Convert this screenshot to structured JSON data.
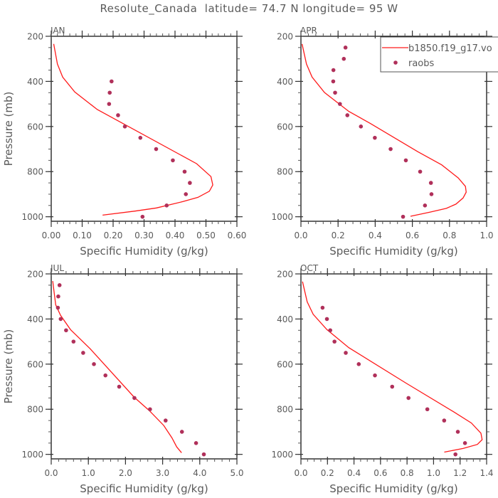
{
  "title": "Resolute_Canada  latitude= 74.7 N longitude= 95 W",
  "colors": {
    "model": "#ff1a1a",
    "obs": "#b0305a",
    "axis": "#000000",
    "text": "#5a5a5a"
  },
  "legend": {
    "model_label": "b1850.f19_g17.vo",
    "obs_label": "raobs",
    "placement": "top-right of APR panel"
  },
  "chart_data": [
    {
      "type": "line",
      "title": "JAN",
      "xlabel": "Specific Humidity (g/kg)",
      "ylabel": "Pressure (mb)",
      "xlim": [
        0,
        0.6
      ],
      "ylim": [
        1020,
        200
      ],
      "y_inverted": true,
      "xticks": [
        "0.00",
        "0.10",
        "0.20",
        "0.30",
        "0.40",
        "0.50",
        "0.60"
      ],
      "xtick_values": [
        0,
        0.1,
        0.2,
        0.3,
        0.4,
        0.5,
        0.6
      ],
      "xminor": 0.02,
      "yticks": [
        "200",
        "400",
        "600",
        "800",
        "1000"
      ],
      "ytick_values": [
        200,
        400,
        600,
        800,
        1000
      ],
      "yminor": 50,
      "series": [
        {
          "name": "b1850.f19_g17.vo",
          "kind": "line",
          "x": [
            0.008,
            0.02,
            0.037,
            0.076,
            0.149,
            0.47,
            0.516,
            0.522,
            0.511,
            0.474,
            0.425,
            0.34,
            0.271,
            0.166
          ],
          "p": [
            234,
            323,
            381,
            447,
            525,
            765,
            822,
            859,
            887,
            914,
            933,
            961,
            975,
            993
          ]
        },
        {
          "name": "raobs",
          "kind": "scatter",
          "x": [
            0.195,
            0.189,
            0.187,
            0.216,
            0.238,
            0.288,
            0.339,
            0.393,
            0.431,
            0.448,
            0.435,
            0.373,
            0.295
          ],
          "p": [
            400,
            450,
            500,
            550,
            600,
            650,
            700,
            750,
            800,
            850,
            900,
            950,
            1000
          ]
        }
      ]
    },
    {
      "type": "line",
      "title": "APR",
      "xlabel": "Specific Humidity (g/kg)",
      "ylabel": "",
      "xlim": [
        0,
        1.0
      ],
      "ylim": [
        1020,
        200
      ],
      "y_inverted": true,
      "xticks": [
        "0.0",
        "0.2",
        "0.4",
        "0.6",
        "0.8",
        "1.0"
      ],
      "xtick_values": [
        0,
        0.2,
        0.4,
        0.6,
        0.8,
        1.0
      ],
      "xminor": 0.04,
      "yticks": [
        "200",
        "400",
        "600",
        "800",
        "1000"
      ],
      "ytick_values": [
        200,
        400,
        600,
        800,
        1000
      ],
      "yminor": 50,
      "series": [
        {
          "name": "b1850.f19_g17.vo",
          "kind": "line",
          "x": [
            0.006,
            0.03,
            0.06,
            0.127,
            0.258,
            0.373,
            0.63,
            0.758,
            0.847,
            0.886,
            0.89,
            0.873,
            0.835,
            0.783,
            0.694,
            0.59
          ],
          "p": [
            234,
            323,
            381,
            449,
            533,
            586,
            712,
            770,
            828,
            865,
            891,
            917,
            944,
            963,
            980,
            998
          ]
        },
        {
          "name": "raobs",
          "kind": "scatter",
          "x": [
            0.24,
            0.231,
            0.175,
            0.174,
            0.184,
            0.21,
            0.25,
            0.323,
            0.398,
            0.483,
            0.565,
            0.642,
            0.7,
            0.703,
            0.668,
            0.55
          ],
          "p": [
            250,
            300,
            350,
            400,
            450,
            500,
            550,
            600,
            650,
            700,
            750,
            800,
            850,
            900,
            950,
            1000
          ]
        }
      ]
    },
    {
      "type": "line",
      "title": "JUL",
      "xlabel": "Specific Humidity (g/kg)",
      "ylabel": "Pressure (mb)",
      "xlim": [
        0,
        5.0
      ],
      "ylim": [
        1020,
        200
      ],
      "y_inverted": true,
      "xticks": [
        "0.0",
        "1.0",
        "2.0",
        "3.0",
        "4.0",
        "5.0"
      ],
      "xtick_values": [
        0,
        1,
        2,
        3,
        4,
        5
      ],
      "xminor": 0.2,
      "yticks": [
        "200",
        "400",
        "600",
        "800",
        "1000"
      ],
      "ytick_values": [
        200,
        400,
        600,
        800,
        1000
      ],
      "yminor": 50,
      "series": [
        {
          "name": "b1850.f19_g17.vo",
          "kind": "line",
          "x": [
            0.04,
            0.12,
            0.25,
            0.52,
            1.05,
            2.23,
            2.64,
            3.03,
            3.25,
            3.38,
            3.51
          ],
          "p": [
            232,
            337,
            383,
            447,
            532,
            746,
            806,
            872,
            927,
            967,
            993
          ]
        },
        {
          "name": "raobs",
          "kind": "scatter",
          "x": [
            0.224,
            0.19,
            0.18,
            0.255,
            0.4,
            0.6,
            0.86,
            1.15,
            1.46,
            1.83,
            2.24,
            2.66,
            3.08,
            3.52,
            3.9,
            4.11
          ],
          "p": [
            250,
            300,
            350,
            400,
            450,
            500,
            550,
            600,
            650,
            700,
            750,
            800,
            850,
            900,
            950,
            1000
          ]
        }
      ]
    },
    {
      "type": "line",
      "title": "OCT",
      "xlabel": "Specific Humidity (g/kg)",
      "ylabel": "",
      "xlim": [
        0,
        1.4
      ],
      "ylim": [
        1020,
        200
      ],
      "y_inverted": true,
      "xticks": [
        "0.0",
        "0.2",
        "0.4",
        "0.6",
        "0.8",
        "1.0",
        "1.2",
        "1.4"
      ],
      "xtick_values": [
        0,
        0.2,
        0.4,
        0.6,
        0.8,
        1.0,
        1.2,
        1.4
      ],
      "xminor": 0.05,
      "yticks": [
        "200",
        "400",
        "600",
        "800",
        "1000"
      ],
      "ytick_values": [
        200,
        400,
        600,
        800,
        1000
      ],
      "yminor": 50,
      "series": [
        {
          "name": "b1850.f19_g17.vo",
          "kind": "line",
          "x": [
            0.012,
            0.047,
            0.092,
            0.196,
            0.361,
            0.792,
            1.15,
            1.285,
            1.357,
            1.366,
            1.33,
            1.222,
            1.081
          ],
          "p": [
            234,
            324,
            379,
            447,
            527,
            684,
            811,
            861,
            906,
            935,
            956,
            974,
            990
          ]
        },
        {
          "name": "raobs",
          "kind": "scatter",
          "x": [
            0.163,
            0.196,
            0.221,
            0.253,
            0.338,
            0.436,
            0.558,
            0.688,
            0.811,
            0.953,
            1.08,
            1.183,
            1.237,
            1.165
          ],
          "p": [
            350,
            400,
            450,
            500,
            550,
            600,
            650,
            700,
            750,
            800,
            850,
            900,
            950,
            1000
          ]
        }
      ]
    }
  ]
}
